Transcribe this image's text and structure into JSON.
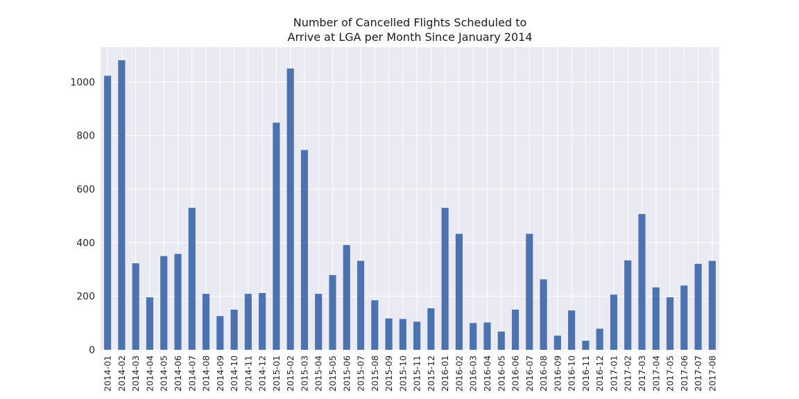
{
  "chart_data": {
    "type": "bar",
    "title_lines": [
      "Number of Cancelled Flights Scheduled to",
      "Arrive at LGA per Month Since January 2014"
    ],
    "xlabel": "",
    "ylabel": "",
    "ylim": [
      0,
      1130
    ],
    "yticks": [
      0,
      200,
      400,
      600,
      800,
      1000
    ],
    "grid": true,
    "bar_color": "#4c72b0",
    "background_color": "#eaeaf2",
    "categories": [
      "2014-01",
      "2014-02",
      "2014-03",
      "2014-04",
      "2014-05",
      "2014-06",
      "2014-07",
      "2014-08",
      "2014-09",
      "2014-10",
      "2014-11",
      "2014-12",
      "2015-01",
      "2015-02",
      "2015-03",
      "2015-04",
      "2015-05",
      "2015-06",
      "2015-07",
      "2015-08",
      "2015-09",
      "2015-10",
      "2015-11",
      "2015-12",
      "2016-01",
      "2016-02",
      "2016-03",
      "2016-04",
      "2016-05",
      "2016-06",
      "2016-07",
      "2016-08",
      "2016-09",
      "2016-10",
      "2016-11",
      "2016-12",
      "2017-01",
      "2017-02",
      "2017-03",
      "2017-04",
      "2017-05",
      "2017-06",
      "2017-07",
      "2017-08"
    ],
    "values": [
      1023,
      1081,
      323,
      196,
      350,
      358,
      530,
      209,
      126,
      150,
      209,
      212,
      848,
      1050,
      746,
      209,
      279,
      391,
      332,
      185,
      117,
      115,
      105,
      155,
      530,
      433,
      100,
      102,
      68,
      150,
      433,
      263,
      53,
      147,
      34,
      79,
      206,
      334,
      507,
      233,
      196,
      240,
      321,
      332
    ]
  }
}
